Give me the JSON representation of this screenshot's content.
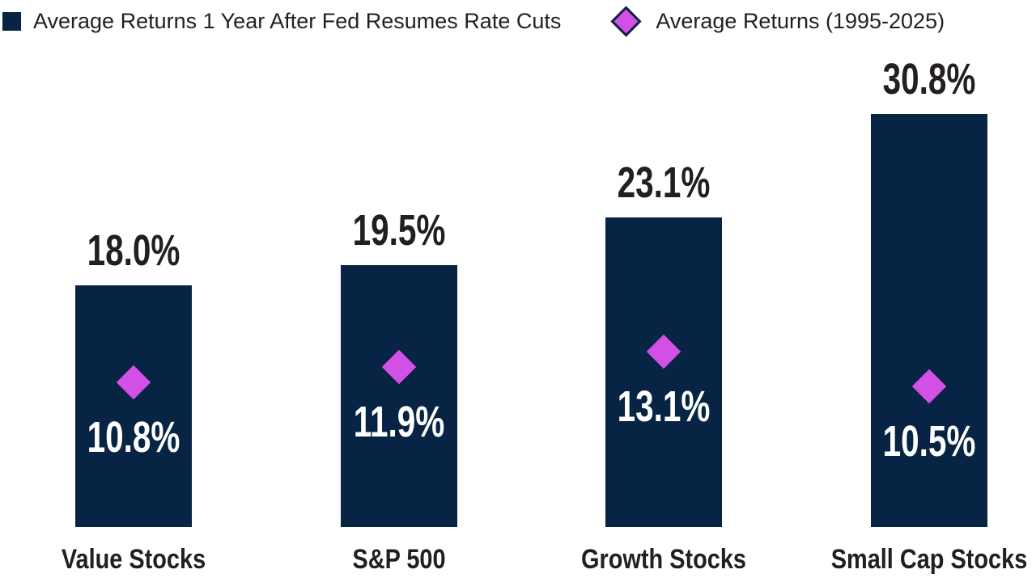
{
  "colors": {
    "bar_navy": "#082444",
    "diamond_magenta": "#d250e6",
    "diamond_legend_border": "#0d2340",
    "text_dark": "#231f20",
    "bar_label_white": "#ffffff",
    "background": "#ffffff"
  },
  "legend": {
    "bar_series_label": "Average Returns 1 Year After Fed Resumes Rate Cuts",
    "diamond_series_label": "Average Returns (1995-2025)"
  },
  "chart_data": {
    "type": "bar",
    "title": "",
    "xlabel": "",
    "ylabel": "",
    "categories": [
      "Value Stocks",
      "S&P 500",
      "Growth Stocks",
      "Small Cap Stocks"
    ],
    "series": [
      {
        "name": "Average Returns 1 Year After Fed Resumes Rate Cuts",
        "type": "bar",
        "values": [
          18.0,
          19.5,
          23.1,
          30.8
        ],
        "labels": [
          "18.0%",
          "19.5%",
          "23.1%",
          "30.8%"
        ],
        "color": "#082444",
        "label_position": "above-bar",
        "label_color": "#231f20"
      },
      {
        "name": "Average Returns (1995-2025)",
        "type": "scatter",
        "marker": "diamond",
        "values": [
          10.8,
          11.9,
          13.1,
          10.5
        ],
        "labels": [
          "10.8%",
          "11.9%",
          "13.1%",
          "10.5%"
        ],
        "color": "#d250e6",
        "label_position": "inside-bar-below-marker",
        "label_color": "#ffffff"
      }
    ],
    "ylim": [
      0,
      33
    ],
    "grid": false,
    "axes_visible": false,
    "legend_position": "top-left"
  }
}
